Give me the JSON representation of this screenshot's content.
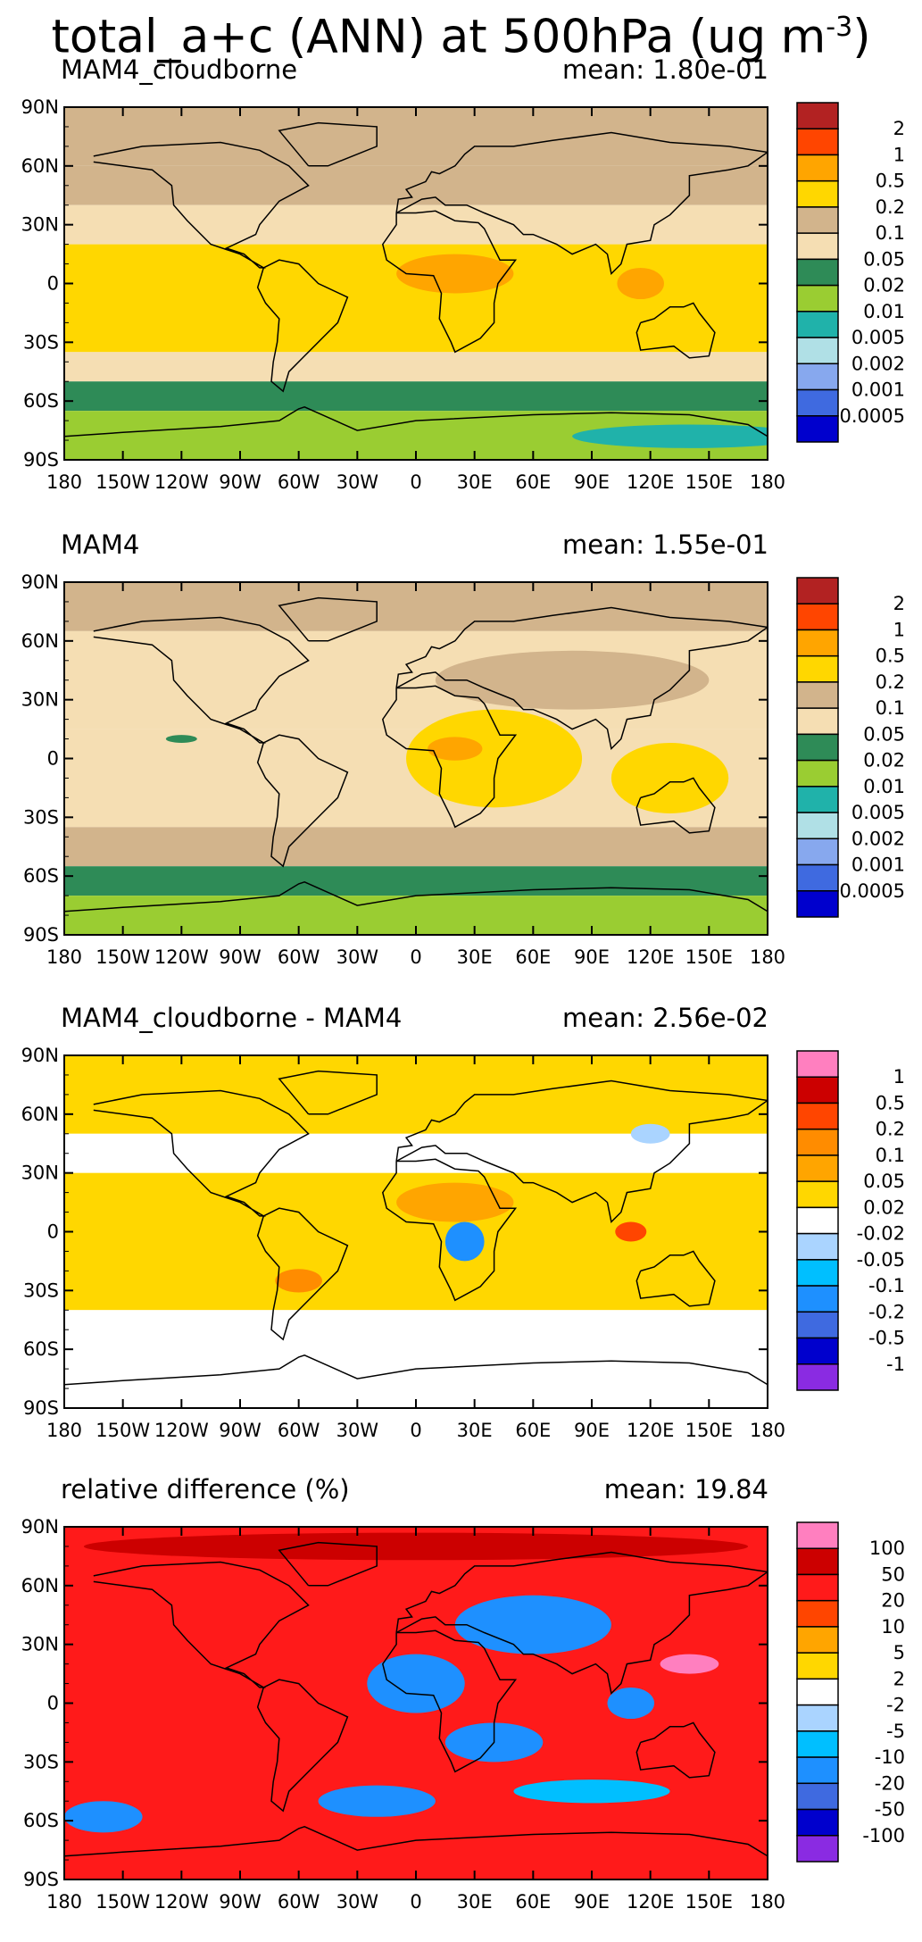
{
  "title": {
    "text": "total_a+c (ANN) at 500hPa (ug m",
    "sup": "-3",
    "close": ")"
  },
  "axes": {
    "lat_labels": [
      "90N",
      "60N",
      "30N",
      "0",
      "30S",
      "60S",
      "90S"
    ],
    "lon_labels": [
      "180",
      "150W",
      "120W",
      "90W",
      "60W",
      "30W",
      "0",
      "30E",
      "60E",
      "90E",
      "120E",
      "150E",
      "180"
    ]
  },
  "panels": [
    {
      "name": "MAM4_cloudborne",
      "mean": "mean: 1.80e-01",
      "colorbar": {
        "colors": [
          "#b22222",
          "#ff4500",
          "#ffa500",
          "#ffd700",
          "#d2b48c",
          "#f5deb3",
          "#2e8b57",
          "#9acd32",
          "#20b2aa",
          "#b0e0e6",
          "#87a8ee",
          "#3f6ae0",
          "#0000cd"
        ],
        "labels": [
          "2",
          "1",
          "0.5",
          "0.2",
          "0.1",
          "0.05",
          "0.02",
          "0.01",
          "0.005",
          "0.002",
          "0.001",
          "0.0005"
        ]
      },
      "map_bands": [
        {
          "lat_top": 90,
          "lat_bottom": 60,
          "color": "#d2b48c"
        },
        {
          "lat_top": 60,
          "lat_bottom": 40,
          "color": "#d2b48c"
        },
        {
          "lat_top": 40,
          "lat_bottom": 20,
          "color": "#f5deb3"
        },
        {
          "lat_top": 20,
          "lat_bottom": -35,
          "color": "#ffd700"
        },
        {
          "lat_top": -35,
          "lat_bottom": -50,
          "color": "#f5deb3"
        },
        {
          "lat_top": -50,
          "lat_bottom": -65,
          "color": "#2e8b57"
        },
        {
          "lat_top": -65,
          "lat_bottom": -90,
          "color": "#9acd32"
        }
      ],
      "map_blobs": [
        {
          "lon": 20,
          "lat": 5,
          "rx": 30,
          "ry": 10,
          "color": "#ffa500"
        },
        {
          "lon": 115,
          "lat": 0,
          "rx": 12,
          "ry": 8,
          "color": "#ffa500"
        },
        {
          "lon": 140,
          "lat": -78,
          "rx": 60,
          "ry": 6,
          "color": "#20b2aa"
        }
      ]
    },
    {
      "name": "MAM4",
      "mean": "mean: 1.55e-01",
      "colorbar": {
        "colors": [
          "#b22222",
          "#ff4500",
          "#ffa500",
          "#ffd700",
          "#d2b48c",
          "#f5deb3",
          "#2e8b57",
          "#9acd32",
          "#20b2aa",
          "#b0e0e6",
          "#87a8ee",
          "#3f6ae0",
          "#0000cd"
        ],
        "labels": [
          "2",
          "1",
          "0.5",
          "0.2",
          "0.1",
          "0.05",
          "0.02",
          "0.01",
          "0.005",
          "0.002",
          "0.001",
          "0.0005"
        ]
      },
      "map_bands": [
        {
          "lat_top": 90,
          "lat_bottom": 65,
          "color": "#d2b48c"
        },
        {
          "lat_top": 65,
          "lat_bottom": 15,
          "color": "#f5deb3"
        },
        {
          "lat_top": 15,
          "lat_bottom": -35,
          "color": "#f5deb3"
        },
        {
          "lat_top": -35,
          "lat_bottom": -55,
          "color": "#d2b48c"
        },
        {
          "lat_top": -55,
          "lat_bottom": -70,
          "color": "#2e8b57"
        },
        {
          "lat_top": -70,
          "lat_bottom": -90,
          "color": "#9acd32"
        }
      ],
      "map_blobs": [
        {
          "lon": 80,
          "lat": 40,
          "rx": 70,
          "ry": 15,
          "color": "#d2b48c"
        },
        {
          "lon": 40,
          "lat": 0,
          "rx": 45,
          "ry": 25,
          "color": "#ffd700"
        },
        {
          "lon": 130,
          "lat": -10,
          "rx": 30,
          "ry": 18,
          "color": "#ffd700"
        },
        {
          "lon": 20,
          "lat": 5,
          "rx": 14,
          "ry": 6,
          "color": "#ffa500"
        },
        {
          "lon": -120,
          "lat": 10,
          "rx": 8,
          "ry": 2,
          "color": "#2e8b57"
        }
      ]
    },
    {
      "name": "MAM4_cloudborne - MAM4",
      "mean": "mean: 2.56e-02",
      "colorbar": {
        "colors": [
          "#ff7fbf",
          "#cc0000",
          "#ff4500",
          "#ff8c00",
          "#ffa500",
          "#ffd700",
          "#ffffff",
          "#aad4ff",
          "#00bfff",
          "#1e90ff",
          "#3f6ae0",
          "#0000cd",
          "#8a2be2"
        ],
        "labels": [
          "1",
          "0.5",
          "0.2",
          "0.1",
          "0.05",
          "0.02",
          "-0.02",
          "-0.05",
          "-0.1",
          "-0.2",
          "-0.5",
          "-1"
        ]
      },
      "map_bands": [
        {
          "lat_top": 90,
          "lat_bottom": 50,
          "color": "#ffd700"
        },
        {
          "lat_top": 50,
          "lat_bottom": 30,
          "color": "#ffffff"
        },
        {
          "lat_top": 30,
          "lat_bottom": -40,
          "color": "#ffd700"
        },
        {
          "lat_top": -40,
          "lat_bottom": -90,
          "color": "#ffffff"
        }
      ],
      "map_blobs": [
        {
          "lon": 20,
          "lat": 15,
          "rx": 30,
          "ry": 10,
          "color": "#ffa500"
        },
        {
          "lon": 25,
          "lat": -5,
          "rx": 10,
          "ry": 10,
          "color": "#1e90ff"
        },
        {
          "lon": -60,
          "lat": -25,
          "rx": 12,
          "ry": 6,
          "color": "#ff8c00"
        },
        {
          "lon": 110,
          "lat": 0,
          "rx": 8,
          "ry": 5,
          "color": "#ff4500"
        },
        {
          "lon": 120,
          "lat": 50,
          "rx": 10,
          "ry": 5,
          "color": "#aad4ff"
        }
      ]
    },
    {
      "name": "relative difference (%)",
      "mean": "mean: 19.84",
      "colorbar": {
        "colors": [
          "#ff7fbf",
          "#cc0000",
          "#ff1a1a",
          "#ff4500",
          "#ffa500",
          "#ffd700",
          "#ffffff",
          "#aad4ff",
          "#00bfff",
          "#1e90ff",
          "#3f6ae0",
          "#0000cd",
          "#8a2be2"
        ],
        "labels": [
          "100",
          "50",
          "20",
          "10",
          "5",
          "2",
          "-2",
          "-5",
          "-10",
          "-20",
          "-50",
          "-100"
        ]
      },
      "map_bands": [
        {
          "lat_top": 90,
          "lat_bottom": -90,
          "color": "#ff1a1a"
        }
      ],
      "map_blobs": [
        {
          "lon": 0,
          "lat": 80,
          "rx": 170,
          "ry": 7,
          "color": "#cc0000"
        },
        {
          "lon": 60,
          "lat": 40,
          "rx": 40,
          "ry": 15,
          "color": "#1e90ff"
        },
        {
          "lon": 0,
          "lat": 10,
          "rx": 25,
          "ry": 15,
          "color": "#1e90ff"
        },
        {
          "lon": 40,
          "lat": -20,
          "rx": 25,
          "ry": 10,
          "color": "#1e90ff"
        },
        {
          "lon": 140,
          "lat": 20,
          "rx": 15,
          "ry": 5,
          "color": "#ff7fbf"
        },
        {
          "lon": 110,
          "lat": 0,
          "rx": 12,
          "ry": 8,
          "color": "#1e90ff"
        },
        {
          "lon": -160,
          "lat": -58,
          "rx": 20,
          "ry": 8,
          "color": "#1e90ff"
        },
        {
          "lon": -20,
          "lat": -50,
          "rx": 30,
          "ry": 8,
          "color": "#1e90ff"
        },
        {
          "lon": 90,
          "lat": -45,
          "rx": 40,
          "ry": 6,
          "color": "#00bfff"
        }
      ]
    }
  ]
}
